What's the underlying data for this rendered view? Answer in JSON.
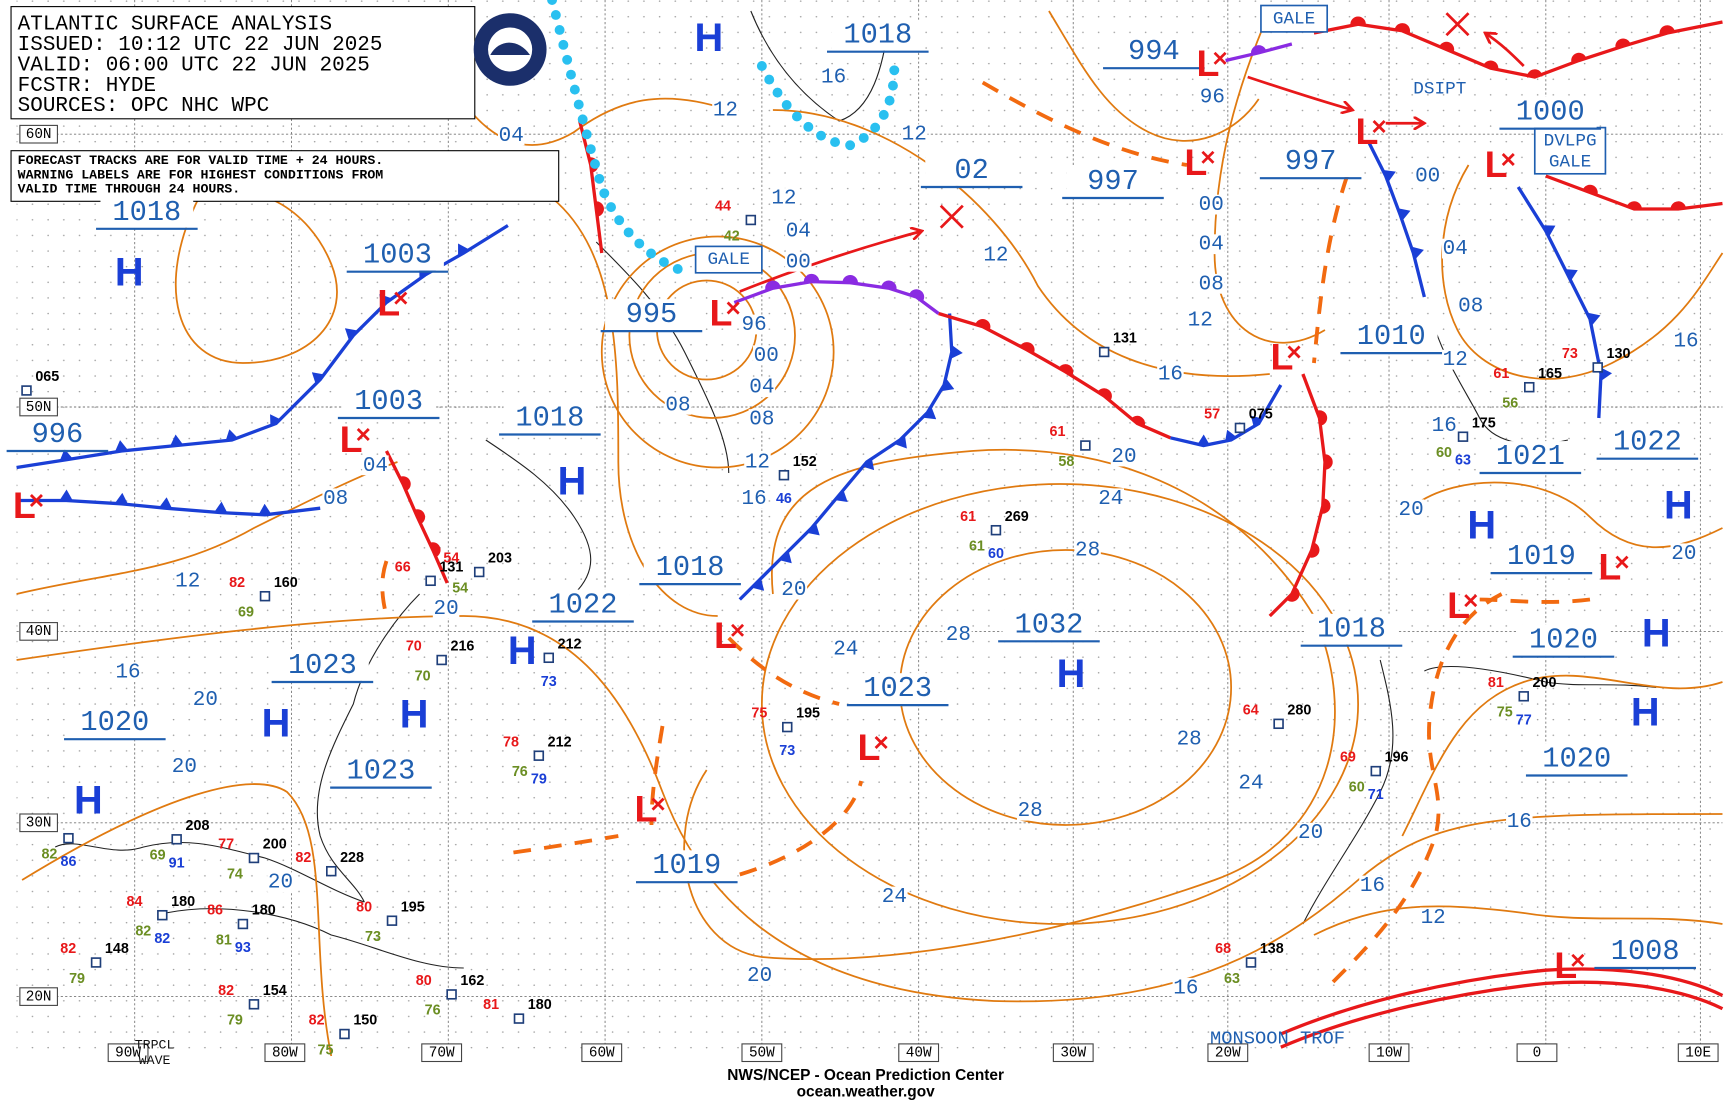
{
  "header": {
    "title": "ATLANTIC SURFACE ANALYSIS",
    "issued": "ISSUED: 10:12 UTC 22 JUN 2025",
    "valid": "VALID:  06:00 UTC 22 JUN 2025",
    "forecaster": "FCSTR:  HYDE",
    "sources": "SOURCES: OPC NHC WPC"
  },
  "note": [
    "FORECAST TRACKS ARE FOR VALID TIME + 24 HOURS.",
    "WARNING LABELS ARE FOR HIGHEST CONDITIONS FROM",
    "VALID TIME THROUGH 24 HOURS."
  ],
  "latitudes": [
    "60N",
    "50N",
    "40N",
    "30N",
    "20N"
  ],
  "longitudes": [
    "90W",
    "80W",
    "70W",
    "60W",
    "50W",
    "40W",
    "30W",
    "20W",
    "10W",
    "0",
    "10E"
  ],
  "centers": [
    {
      "pressure": "1018",
      "symbol": "H"
    },
    {
      "pressure": "1003",
      "symbol": "L"
    },
    {
      "pressure": "1003",
      "symbol": "L"
    },
    {
      "pressure": "996",
      "symbol": "L"
    },
    {
      "pressure": "1018",
      "symbol": "H"
    },
    {
      "pressure": "995",
      "symbol": "L"
    },
    {
      "pressure": "1018",
      "symbol": "H"
    },
    {
      "pressure": "02"
    },
    {
      "pressure": "997",
      "symbol": "L"
    },
    {
      "pressure": "994",
      "symbol": "L"
    },
    {
      "pressure": "997",
      "symbol": "L"
    },
    {
      "pressure": "1000",
      "symbol": "L"
    },
    {
      "pressure": "1010",
      "symbol": "L"
    },
    {
      "pressure": "1021",
      "symbol": "H"
    },
    {
      "pressure": "1022",
      "symbol": "H"
    },
    {
      "pressure": "1019",
      "symbol": "L"
    },
    {
      "pressure": "1020",
      "symbol": "H"
    },
    {
      "pressure": "1020",
      "symbol": "H"
    },
    {
      "pressure": "1018",
      "symbol": "L"
    },
    {
      "pressure": "1032",
      "symbol": "H"
    },
    {
      "pressure": "1023",
      "symbol": "L"
    },
    {
      "pressure": "1019",
      "symbol": "L"
    },
    {
      "pressure": "1018",
      "symbol": "L"
    },
    {
      "pressure": "1022",
      "symbol": "H"
    },
    {
      "pressure": "1023",
      "symbol": "H"
    },
    {
      "pressure": "1023",
      "symbol": "H"
    },
    {
      "pressure": "1020",
      "symbol": "H"
    },
    {
      "pressure": "1008",
      "symbol": "L"
    }
  ],
  "labels": [
    "GALE",
    "GALE",
    "DVLPG",
    "GALE",
    "DSIPT",
    "MONSOON TROF",
    "TRPCL",
    "WAVE"
  ],
  "isobars": [
    "04",
    "12",
    "16",
    "12",
    "12",
    "04",
    "00",
    "96",
    "00",
    "04",
    "08",
    "12",
    "16",
    "08",
    "12",
    "00",
    "04",
    "08",
    "12",
    "16",
    "20",
    "24",
    "28",
    "28",
    "24",
    "20",
    "28",
    "24",
    "28",
    "20",
    "24",
    "20",
    "16",
    "12",
    "16",
    "16",
    "20",
    "16",
    "12",
    "16",
    "20",
    "08",
    "04",
    "00",
    "96",
    "04",
    "08",
    "12",
    "20",
    "16",
    "20",
    "20",
    "20"
  ],
  "stations": [
    {
      "pres": "131"
    },
    {
      "temp": "57",
      "pres": "075"
    },
    {
      "dew": "60",
      "pres": "175",
      "sst": "63"
    },
    {
      "temp": "61",
      "pres": "269",
      "dew": "61",
      "sst": "60"
    },
    {
      "pres": "212",
      "sst": "73"
    },
    {
      "temp": "78",
      "pres": "212",
      "dew": "76",
      "sst": "79"
    },
    {
      "temp": "75",
      "pres": "195",
      "sst": "73"
    },
    {
      "pres": "152",
      "sst": "46"
    },
    {
      "temp": "64",
      "pres": "280"
    },
    {
      "temp": "69",
      "pres": "196",
      "dew": "60",
      "sst": "71"
    },
    {
      "temp": "81",
      "pres": "200",
      "dew": "75",
      "sst": "77"
    },
    {
      "temp": "61",
      "pres": "165",
      "dew": "56"
    },
    {
      "temp": "73",
      "pres": "130"
    },
    {
      "temp": "68",
      "pres": "138",
      "dew": "63"
    },
    {
      "temp": "81",
      "pres": "180"
    },
    {
      "temp": "80",
      "pres": "162",
      "dew": "76"
    },
    {
      "temp": "80",
      "pres": "195",
      "dew": "73"
    },
    {
      "temp": "82",
      "pres": "228"
    },
    {
      "temp": "77",
      "pres": "200",
      "dew": "74"
    },
    {
      "temp": "84",
      "pres": "180",
      "dew": "82",
      "sst": "82"
    },
    {
      "temp": "82",
      "pres": "148",
      "dew": "79"
    },
    {
      "temp": "86",
      "pres": "180",
      "dew": "81",
      "sst": "93"
    },
    {
      "pres": "208",
      "dew": "69",
      "sst": "91"
    },
    {
      "temp": "82",
      "pres": "154",
      "dew": "79"
    },
    {
      "temp": "82",
      "pres": "150",
      "dew": "75"
    },
    {
      "pres": "065"
    },
    {
      "temp": "44",
      "dew": "42"
    },
    {
      "temp": "54",
      "pres": "203",
      "dew": "54"
    },
    {
      "temp": "66",
      "pres": "131"
    },
    {
      "temp": "70",
      "pres": "216",
      "dew": "70"
    },
    {
      "temp": "82",
      "pres": "160",
      "dew": "69"
    },
    {
      "dew": "82",
      "sst": "86"
    },
    {
      "temp": "61",
      "dew": "58"
    }
  ],
  "footer": {
    "agency": "NWS/NCEP - Ocean Prediction Center",
    "url": "ocean.weather.gov"
  }
}
